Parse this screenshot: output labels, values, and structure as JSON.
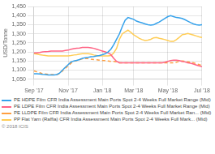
{
  "chart_data": {
    "type": "line",
    "ylabel": "USD/Tonne",
    "categories": [
      "Sep '17",
      null,
      null,
      null,
      null,
      null,
      null,
      null,
      null,
      null,
      null,
      null,
      "Nov '17",
      null,
      null,
      null,
      null,
      null,
      null,
      null,
      null,
      null,
      null,
      null,
      "Jan '18",
      null,
      null,
      null,
      null,
      null,
      null,
      null,
      null,
      null,
      null,
      "Mar '18",
      null,
      null,
      null,
      null,
      null,
      null,
      null,
      null,
      null,
      null,
      null,
      "May '18",
      null,
      null,
      null,
      null,
      null,
      null,
      null,
      null,
      null,
      null,
      null,
      "Jul '18"
    ],
    "series": [
      {
        "name": "PE HDPE Film CFR India Assessment Main Ports Spot 2-4 Weeks Full Market Range (Mid)",
        "values": [
          1080,
          1080,
          1078,
          1076,
          1075,
          1073,
          1073,
          1073,
          1075,
          1083,
          1100,
          1115,
          1130,
          1145,
          1150,
          1153,
          1158,
          1165,
          1168,
          1170,
          1173,
          1175,
          1178,
          1180,
          1185,
          1190,
          1200,
          1215,
          1240,
          1270,
          1300,
          1340,
          1375,
          1390,
          1385,
          1380,
          1370,
          1365,
          1360,
          1355,
          1350,
          1348,
          1350,
          1358,
          1365,
          1375,
          1385,
          1395,
          1400,
          1395,
          1390,
          1388,
          1385,
          1378,
          1370,
          1362,
          1355,
          1350,
          1348,
          1350
        ]
      },
      {
        "name": "PE LDPE Film CFR India Assessment Main Ports Spot 2-4 Weeks Full Market Range (Mid)",
        "values": [
          1195,
          1195,
          1197,
          1200,
          1202,
          1203,
          1205,
          1205,
          1205,
          1205,
          1205,
          1208,
          1210,
          1215,
          1218,
          1220,
          1222,
          1225,
          1225,
          1225,
          1223,
          1220,
          1215,
          1210,
          1205,
          1200,
          1195,
          1185,
          1165,
          1148,
          1140,
          1140,
          1140,
          1140,
          1140,
          1140,
          1140,
          1140,
          1140,
          1140,
          1140,
          1140,
          1140,
          1140,
          1140,
          1140,
          1143,
          1148,
          1152,
          1155,
          1155,
          1152,
          1148,
          1145,
          1140,
          1138,
          1133,
          1128,
          1123,
          1118
        ]
      },
      {
        "name": "PE LLDPE Film CFR India Assessment Main Ports Spot 2-4 Weeks Full Market Ran... (Mid)",
        "line_style": "dashed",
        "values": [
          1095,
          1090,
          1085,
          1080,
          1078,
          1076,
          1075,
          1075,
          1075,
          1080,
          1095,
          1110,
          1123,
          1138,
          1148,
          1152,
          1158,
          1162,
          1163,
          1163,
          1160,
          1158,
          1157,
          1155,
          1153,
          1152,
          1150,
          1148,
          1148,
          1145,
          1140,
          1140,
          1140,
          1140,
          1140,
          1140,
          1140,
          1140,
          1140,
          1140,
          1140,
          1140,
          1140,
          1140,
          1140,
          1140,
          1140,
          1140,
          1140,
          1140,
          1143,
          1148,
          1150,
          1148,
          1145,
          1143,
          1140,
          1135,
          1130,
          1125
        ]
      },
      {
        "name": "PP Flat Yarn (Raffia) CFR India Assessment Main Ports Spot 2-4 Weeks Full Mark... (Mid)",
        "values": [
          1190,
          1188,
          1185,
          1182,
          1180,
          1178,
          1178,
          1178,
          1178,
          1178,
          1178,
          1178,
          1178,
          1180,
          1183,
          1185,
          1188,
          1190,
          1190,
          1190,
          1188,
          1183,
          1180,
          1178,
          1178,
          1178,
          1178,
          1180,
          1195,
          1220,
          1270,
          1300,
          1310,
          1320,
          1308,
          1295,
          1285,
          1275,
          1268,
          1263,
          1265,
          1270,
          1278,
          1280,
          1275,
          1272,
          1268,
          1263,
          1258,
          1258,
          1268,
          1280,
          1295,
          1298,
          1302,
          1298,
          1293,
          1288,
          1283,
          1280
        ]
      }
    ],
    "ylim": [
      1050,
      1450
    ],
    "yticks": [
      {
        "value": 1050,
        "label": "1,050"
      },
      {
        "value": 1100,
        "label": "1,100"
      },
      {
        "value": 1150,
        "label": "1,150"
      },
      {
        "value": 1200,
        "label": "1,200"
      },
      {
        "value": 1250,
        "label": "1,250"
      },
      {
        "value": 1300,
        "label": "1,300"
      },
      {
        "value": 1350,
        "label": "1,350"
      },
      {
        "value": 1400,
        "label": "1,400"
      },
      {
        "value": 1450,
        "label": "1,450"
      }
    ],
    "grid": true,
    "legend": "bottom",
    "annotations": [
      "© 2018 ICIS"
    ]
  }
}
